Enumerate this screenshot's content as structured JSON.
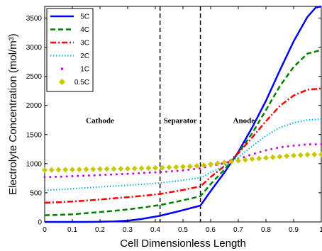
{
  "chart_data": {
    "type": "line",
    "xlabel": "Cell Dimensionless Length",
    "ylabel": "Electrolyte Concentration (mol/m³)",
    "xlim": [
      0,
      1
    ],
    "ylim": [
      0,
      3700
    ],
    "x_ticks": [
      "0",
      "0.1",
      "0.2",
      "0.3",
      "0.4",
      "0.5",
      "0.6",
      "0.7",
      "0.8",
      "0.9",
      "1"
    ],
    "y_ticks": [
      "0",
      "500",
      "1000",
      "1500",
      "2000",
      "2500",
      "3000",
      "3500"
    ],
    "grid": false,
    "legend_position": "top-left",
    "boundaries": [
      0.417,
      0.563
    ],
    "regions": [
      {
        "label": "Cathode",
        "x": 0.2
      },
      {
        "label": "Separator",
        "x": 0.49
      },
      {
        "label": "Anode",
        "x": 0.72
      }
    ],
    "series": [
      {
        "name": "5C",
        "color": "#0000ff",
        "style": "solid",
        "x": [
          0,
          0.05,
          0.1,
          0.15,
          0.2,
          0.25,
          0.3,
          0.35,
          0.417,
          0.49,
          0.563,
          0.6,
          0.65,
          0.7,
          0.75,
          0.8,
          0.85,
          0.9,
          0.95,
          0.98,
          1
        ],
        "y": [
          0,
          0,
          0,
          0,
          2,
          8,
          22,
          50,
          105,
          190,
          280,
          530,
          850,
          1200,
          1620,
          2080,
          2600,
          3100,
          3520,
          3680,
          3700
        ]
      },
      {
        "name": "4C",
        "color": "#008000",
        "style": "dashed",
        "x": [
          0,
          0.05,
          0.1,
          0.15,
          0.2,
          0.25,
          0.3,
          0.35,
          0.417,
          0.49,
          0.563,
          0.6,
          0.65,
          0.7,
          0.75,
          0.8,
          0.85,
          0.9,
          0.95,
          1
        ],
        "y": [
          115,
          120,
          132,
          150,
          170,
          190,
          215,
          245,
          290,
          360,
          440,
          650,
          900,
          1180,
          1520,
          1920,
          2330,
          2660,
          2890,
          2950
        ]
      },
      {
        "name": "3C",
        "color": "#ff0000",
        "style": "dashdot",
        "x": [
          0,
          0.05,
          0.1,
          0.15,
          0.2,
          0.25,
          0.3,
          0.35,
          0.417,
          0.49,
          0.563,
          0.6,
          0.65,
          0.7,
          0.75,
          0.8,
          0.85,
          0.9,
          0.95,
          1
        ],
        "y": [
          330,
          338,
          350,
          366,
          385,
          405,
          425,
          445,
          480,
          540,
          610,
          770,
          960,
          1180,
          1450,
          1730,
          1990,
          2170,
          2270,
          2290
        ]
      },
      {
        "name": "2C",
        "color": "#00b0e0",
        "style": "dotted",
        "x": [
          0,
          0.05,
          0.1,
          0.15,
          0.2,
          0.25,
          0.3,
          0.35,
          0.417,
          0.49,
          0.563,
          0.6,
          0.65,
          0.7,
          0.75,
          0.8,
          0.85,
          0.9,
          0.95,
          1
        ],
        "y": [
          545,
          555,
          570,
          585,
          600,
          615,
          630,
          645,
          670,
          710,
          760,
          850,
          960,
          1110,
          1300,
          1480,
          1620,
          1700,
          1750,
          1765
        ]
      },
      {
        "name": "1C",
        "color": "#cc00cc",
        "style": "sparse-dots",
        "x": [
          0,
          0.05,
          0.1,
          0.15,
          0.2,
          0.25,
          0.3,
          0.35,
          0.417,
          0.49,
          0.563,
          0.6,
          0.65,
          0.7,
          0.75,
          0.8,
          0.85,
          0.9,
          0.95,
          1
        ],
        "y": [
          770,
          775,
          785,
          795,
          805,
          815,
          825,
          840,
          855,
          880,
          920,
          960,
          1010,
          1080,
          1160,
          1230,
          1280,
          1310,
          1330,
          1335
        ]
      },
      {
        "name": "0.5C",
        "color": "#c8c800",
        "style": "diamonds",
        "x": [
          0,
          0.05,
          0.1,
          0.15,
          0.2,
          0.25,
          0.3,
          0.35,
          0.417,
          0.49,
          0.563,
          0.6,
          0.65,
          0.7,
          0.75,
          0.8,
          0.85,
          0.9,
          0.95,
          1
        ],
        "y": [
          890,
          895,
          898,
          902,
          906,
          910,
          915,
          920,
          928,
          945,
          965,
          990,
          1020,
          1050,
          1080,
          1100,
          1120,
          1140,
          1155,
          1160
        ]
      }
    ]
  }
}
